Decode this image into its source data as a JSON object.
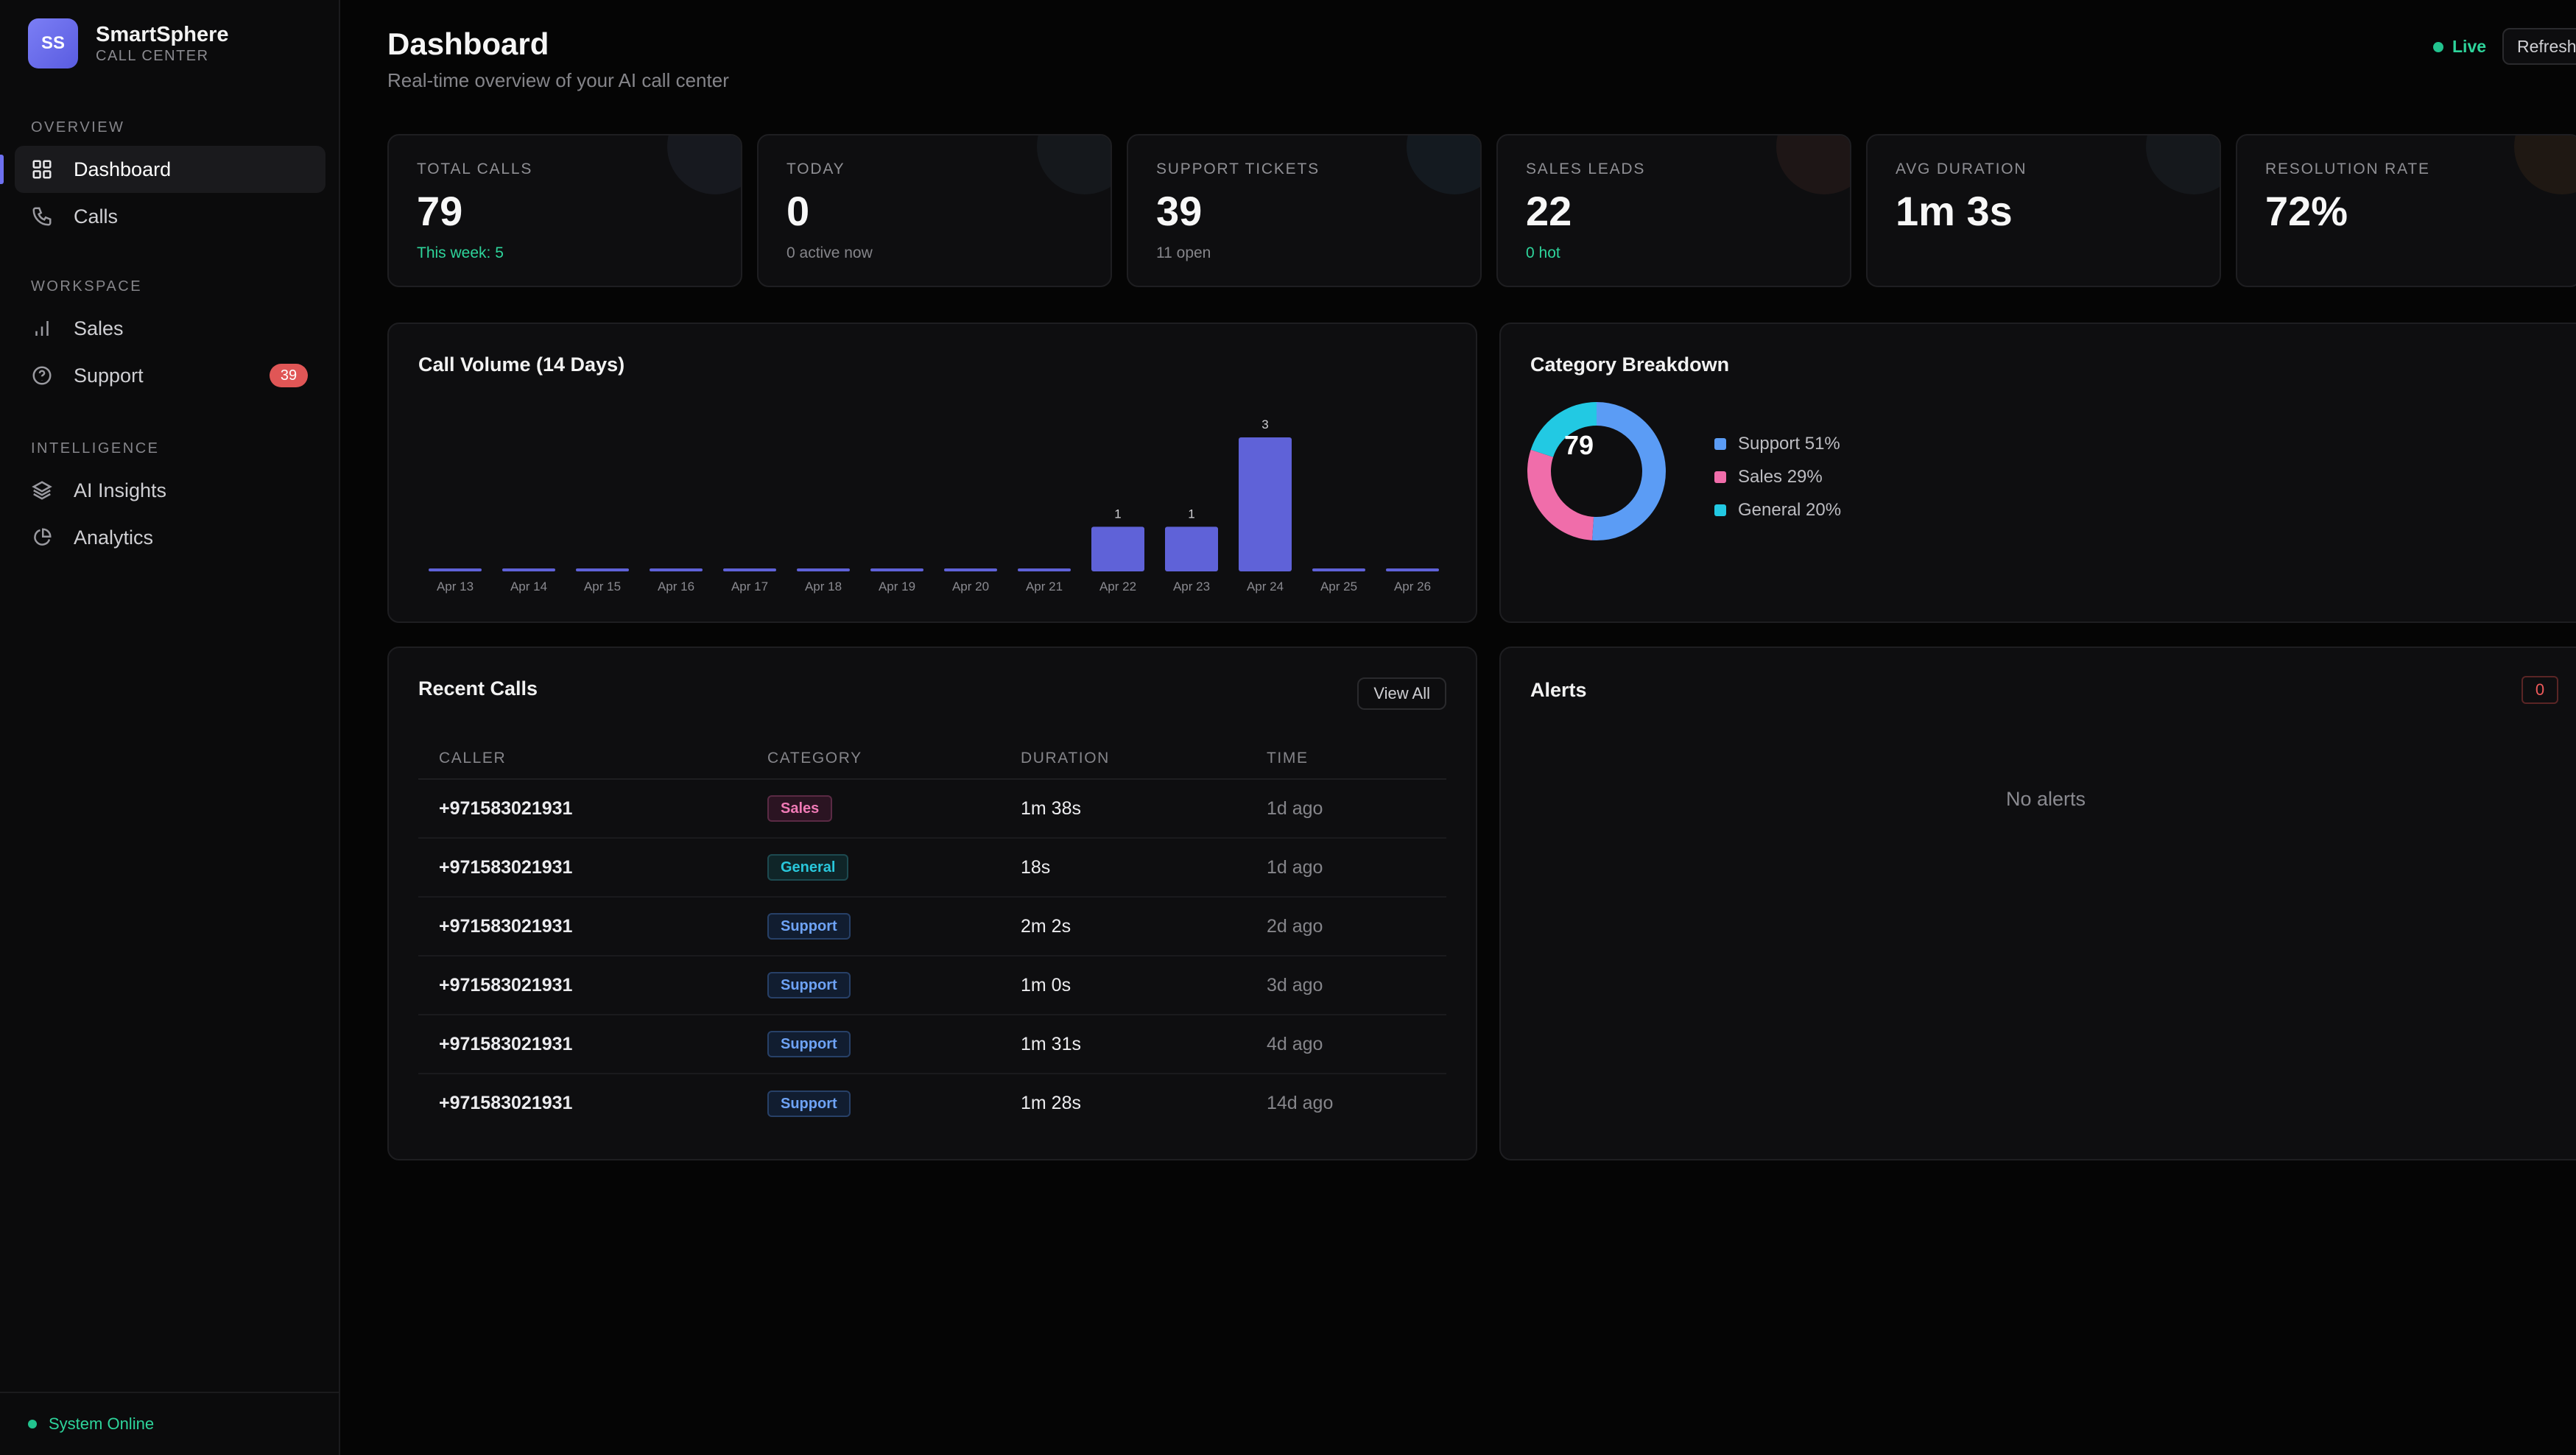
{
  "brand": {
    "initials": "SS",
    "name": "SmartSphere",
    "subtitle": "CALL CENTER"
  },
  "sidebar": {
    "sections": [
      {
        "heading": "OVERVIEW",
        "items": [
          {
            "label": "Dashboard",
            "icon": "grid-icon",
            "active": true
          },
          {
            "label": "Calls",
            "icon": "phone-icon"
          }
        ]
      },
      {
        "heading": "WORKSPACE",
        "items": [
          {
            "label": "Sales",
            "icon": "bar-chart-icon"
          },
          {
            "label": "Support",
            "icon": "help-circle-icon",
            "badge": "39"
          }
        ]
      },
      {
        "heading": "INTELLIGENCE",
        "items": [
          {
            "label": "AI Insights",
            "icon": "layers-icon"
          },
          {
            "label": "Analytics",
            "icon": "pie-chart-icon"
          }
        ]
      }
    ],
    "footer": {
      "status": "System Online"
    }
  },
  "header": {
    "title": "Dashboard",
    "subtitle": "Real-time overview of your AI call center",
    "live_label": "Live",
    "refresh_label": "Refresh"
  },
  "stats": [
    {
      "label": "TOTAL CALLS",
      "value": "79",
      "sub": "This week: 5",
      "sub_color": "green"
    },
    {
      "label": "TODAY",
      "value": "0",
      "sub": "0 active now",
      "sub_color": "muted"
    },
    {
      "label": "SUPPORT TICKETS",
      "value": "39",
      "sub": "11 open",
      "sub_color": "muted"
    },
    {
      "label": "SALES LEADS",
      "value": "22",
      "sub": "0 hot",
      "sub_color": "green"
    },
    {
      "label": "AVG DURATION",
      "value": "1m 3s",
      "sub": "",
      "sub_color": "muted"
    },
    {
      "label": "RESOLUTION RATE",
      "value": "72%",
      "sub": "",
      "sub_color": "muted"
    }
  ],
  "colors": {
    "accent": "#6d70f0",
    "bar": "#5f62d8",
    "support": "#5b9cf5",
    "sales": "#f06daa",
    "general": "#22c9e3",
    "online": "#22c38e"
  },
  "volume_panel": {
    "title": "Call Volume (14 Days)"
  },
  "category_panel": {
    "title": "Category Breakdown",
    "total": "79"
  },
  "chart_data": [
    {
      "type": "bar",
      "title": "Call Volume (14 Days)",
      "categories": [
        "Apr 13",
        "Apr 14",
        "Apr 15",
        "Apr 16",
        "Apr 17",
        "Apr 18",
        "Apr 19",
        "Apr 20",
        "Apr 21",
        "Apr 22",
        "Apr 23",
        "Apr 24",
        "Apr 25",
        "Apr 26"
      ],
      "values": [
        0,
        0,
        0,
        0,
        0,
        0,
        0,
        0,
        0,
        1,
        1,
        3,
        0,
        0
      ],
      "data_labels": [
        "",
        "",
        "",
        "",
        "",
        "",
        "",
        "",
        "",
        "1",
        "1",
        "3",
        "",
        ""
      ],
      "grid": false
    },
    {
      "type": "pie",
      "title": "Category Breakdown",
      "donut": true,
      "center_label": "79",
      "categories": [
        "Support",
        "Sales",
        "General"
      ],
      "values": [
        51,
        29,
        20
      ],
      "legend_labels": [
        "Support 51%",
        "Sales 29%",
        "General 20%"
      ],
      "legend": "right"
    }
  ],
  "recent_calls": {
    "title": "Recent Calls",
    "view_all_label": "View All",
    "columns": [
      "CALLER",
      "CATEGORY",
      "DURATION",
      "TIME"
    ],
    "rows": [
      {
        "caller": "+971583021931",
        "category": "Sales",
        "duration": "1m 38s",
        "time": "1d ago"
      },
      {
        "caller": "+971583021931",
        "category": "General",
        "duration": "18s",
        "time": "1d ago"
      },
      {
        "caller": "+971583021931",
        "category": "Support",
        "duration": "2m 2s",
        "time": "2d ago"
      },
      {
        "caller": "+971583021931",
        "category": "Support",
        "duration": "1m 0s",
        "time": "3d ago"
      },
      {
        "caller": "+971583021931",
        "category": "Support",
        "duration": "1m 31s",
        "time": "4d ago"
      },
      {
        "caller": "+971583021931",
        "category": "Support",
        "duration": "1m 28s",
        "time": "14d ago"
      }
    ]
  },
  "alerts": {
    "title": "Alerts",
    "count": "0",
    "empty_text": "No alerts"
  }
}
